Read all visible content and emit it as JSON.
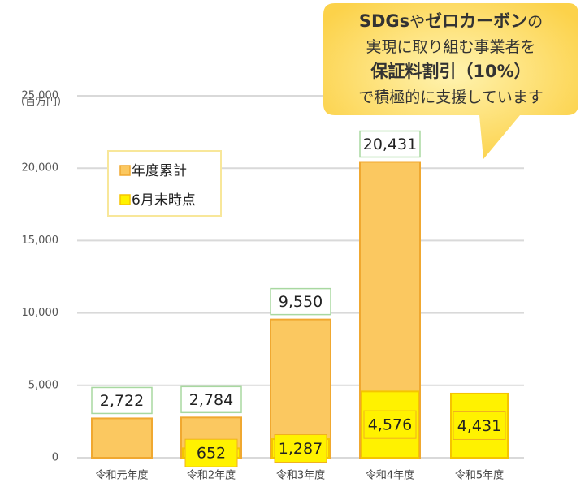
{
  "chart_data": {
    "type": "bar",
    "y_unit": "（百万円）",
    "categories": [
      "令和元年度",
      "令和2年度",
      "令和3年度",
      "令和4年度",
      "令和5年度"
    ],
    "series": [
      {
        "name": "年度累計",
        "color": "#fbc860",
        "values": [
          2722,
          2784,
          9550,
          20431,
          null
        ],
        "value_labels": [
          "2,722",
          "2,784",
          "9,550",
          "20,431",
          null
        ]
      },
      {
        "name": "6月末時点",
        "color": "#fff200",
        "values": [
          null,
          652,
          1287,
          4576,
          4431
        ],
        "value_labels": [
          null,
          "652",
          "1,287",
          "4,576",
          "4,431"
        ]
      }
    ],
    "ylim": [
      0,
      25000
    ],
    "yticks": [
      0,
      {
        "value": 5000,
        "label": "5,000"
      },
      {
        "value": 10000,
        "label": "10,000"
      },
      {
        "value": 15000,
        "label": "15,000"
      },
      {
        "value": 20000,
        "label": "20,000"
      },
      {
        "value": 25000,
        "label": "25,000"
      }
    ],
    "grid": true,
    "legend": "upper left",
    "annotation": {
      "lines": [
        [
          "SDGs",
          "や",
          "ゼロカーボン",
          "の"
        ],
        [
          "実現に取り組む事業者を"
        ],
        [
          "保証料割引（10%）"
        ],
        [
          "で積極的に支援しています"
        ]
      ]
    }
  }
}
